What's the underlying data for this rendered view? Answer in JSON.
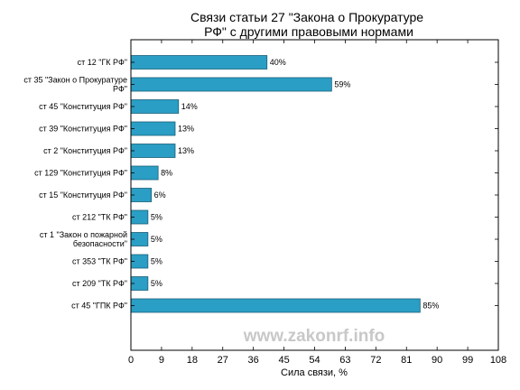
{
  "chart_data": {
    "type": "bar",
    "orientation": "horizontal",
    "title_lines": [
      "Связи статьи 27 \"Закона о Прокуратуре",
      "РФ\" с другими правовыми нормами"
    ],
    "xlabel": "Сила связи, %",
    "ylabel": "",
    "xlim": [
      0,
      108
    ],
    "xticks": [
      "0",
      "9",
      "18",
      "27",
      "36",
      "45",
      "54",
      "63",
      "72",
      "81",
      "90",
      "99",
      "108"
    ],
    "categories": [
      [
        "ст 12 \"ГК РФ\""
      ],
      [
        "ст 35 \"Закон о Прокуратуре",
        "РФ\""
      ],
      [
        "ст 45 \"Конституция РФ\""
      ],
      [
        "ст 39 \"Конституция РФ\""
      ],
      [
        "ст 2 \"Конституция РФ\""
      ],
      [
        "ст 129 \"Конституция РФ\""
      ],
      [
        "ст 15 \"Конституция РФ\""
      ],
      [
        "ст 212 \"ТК РФ\""
      ],
      [
        "ст 1 \"Закон о пожарной",
        "безопасности\""
      ],
      [
        "ст 353 \"ТК РФ\""
      ],
      [
        "ст 209 \"ТК РФ\""
      ],
      [
        "ст 45 \"ГПК РФ\""
      ]
    ],
    "values": [
      40,
      59,
      14,
      13,
      13,
      8,
      6,
      5,
      5,
      5,
      5,
      85
    ],
    "value_labels": [
      "40%",
      "59%",
      "14%",
      "13%",
      "13%",
      "8%",
      "6%",
      "5%",
      "5%",
      "5%",
      "5%",
      "85%"
    ],
    "grid": false,
    "bar_color": "#2a9ec4",
    "bar_edge_color": "#1b5f78"
  },
  "watermark": "www.zakonrf.info"
}
